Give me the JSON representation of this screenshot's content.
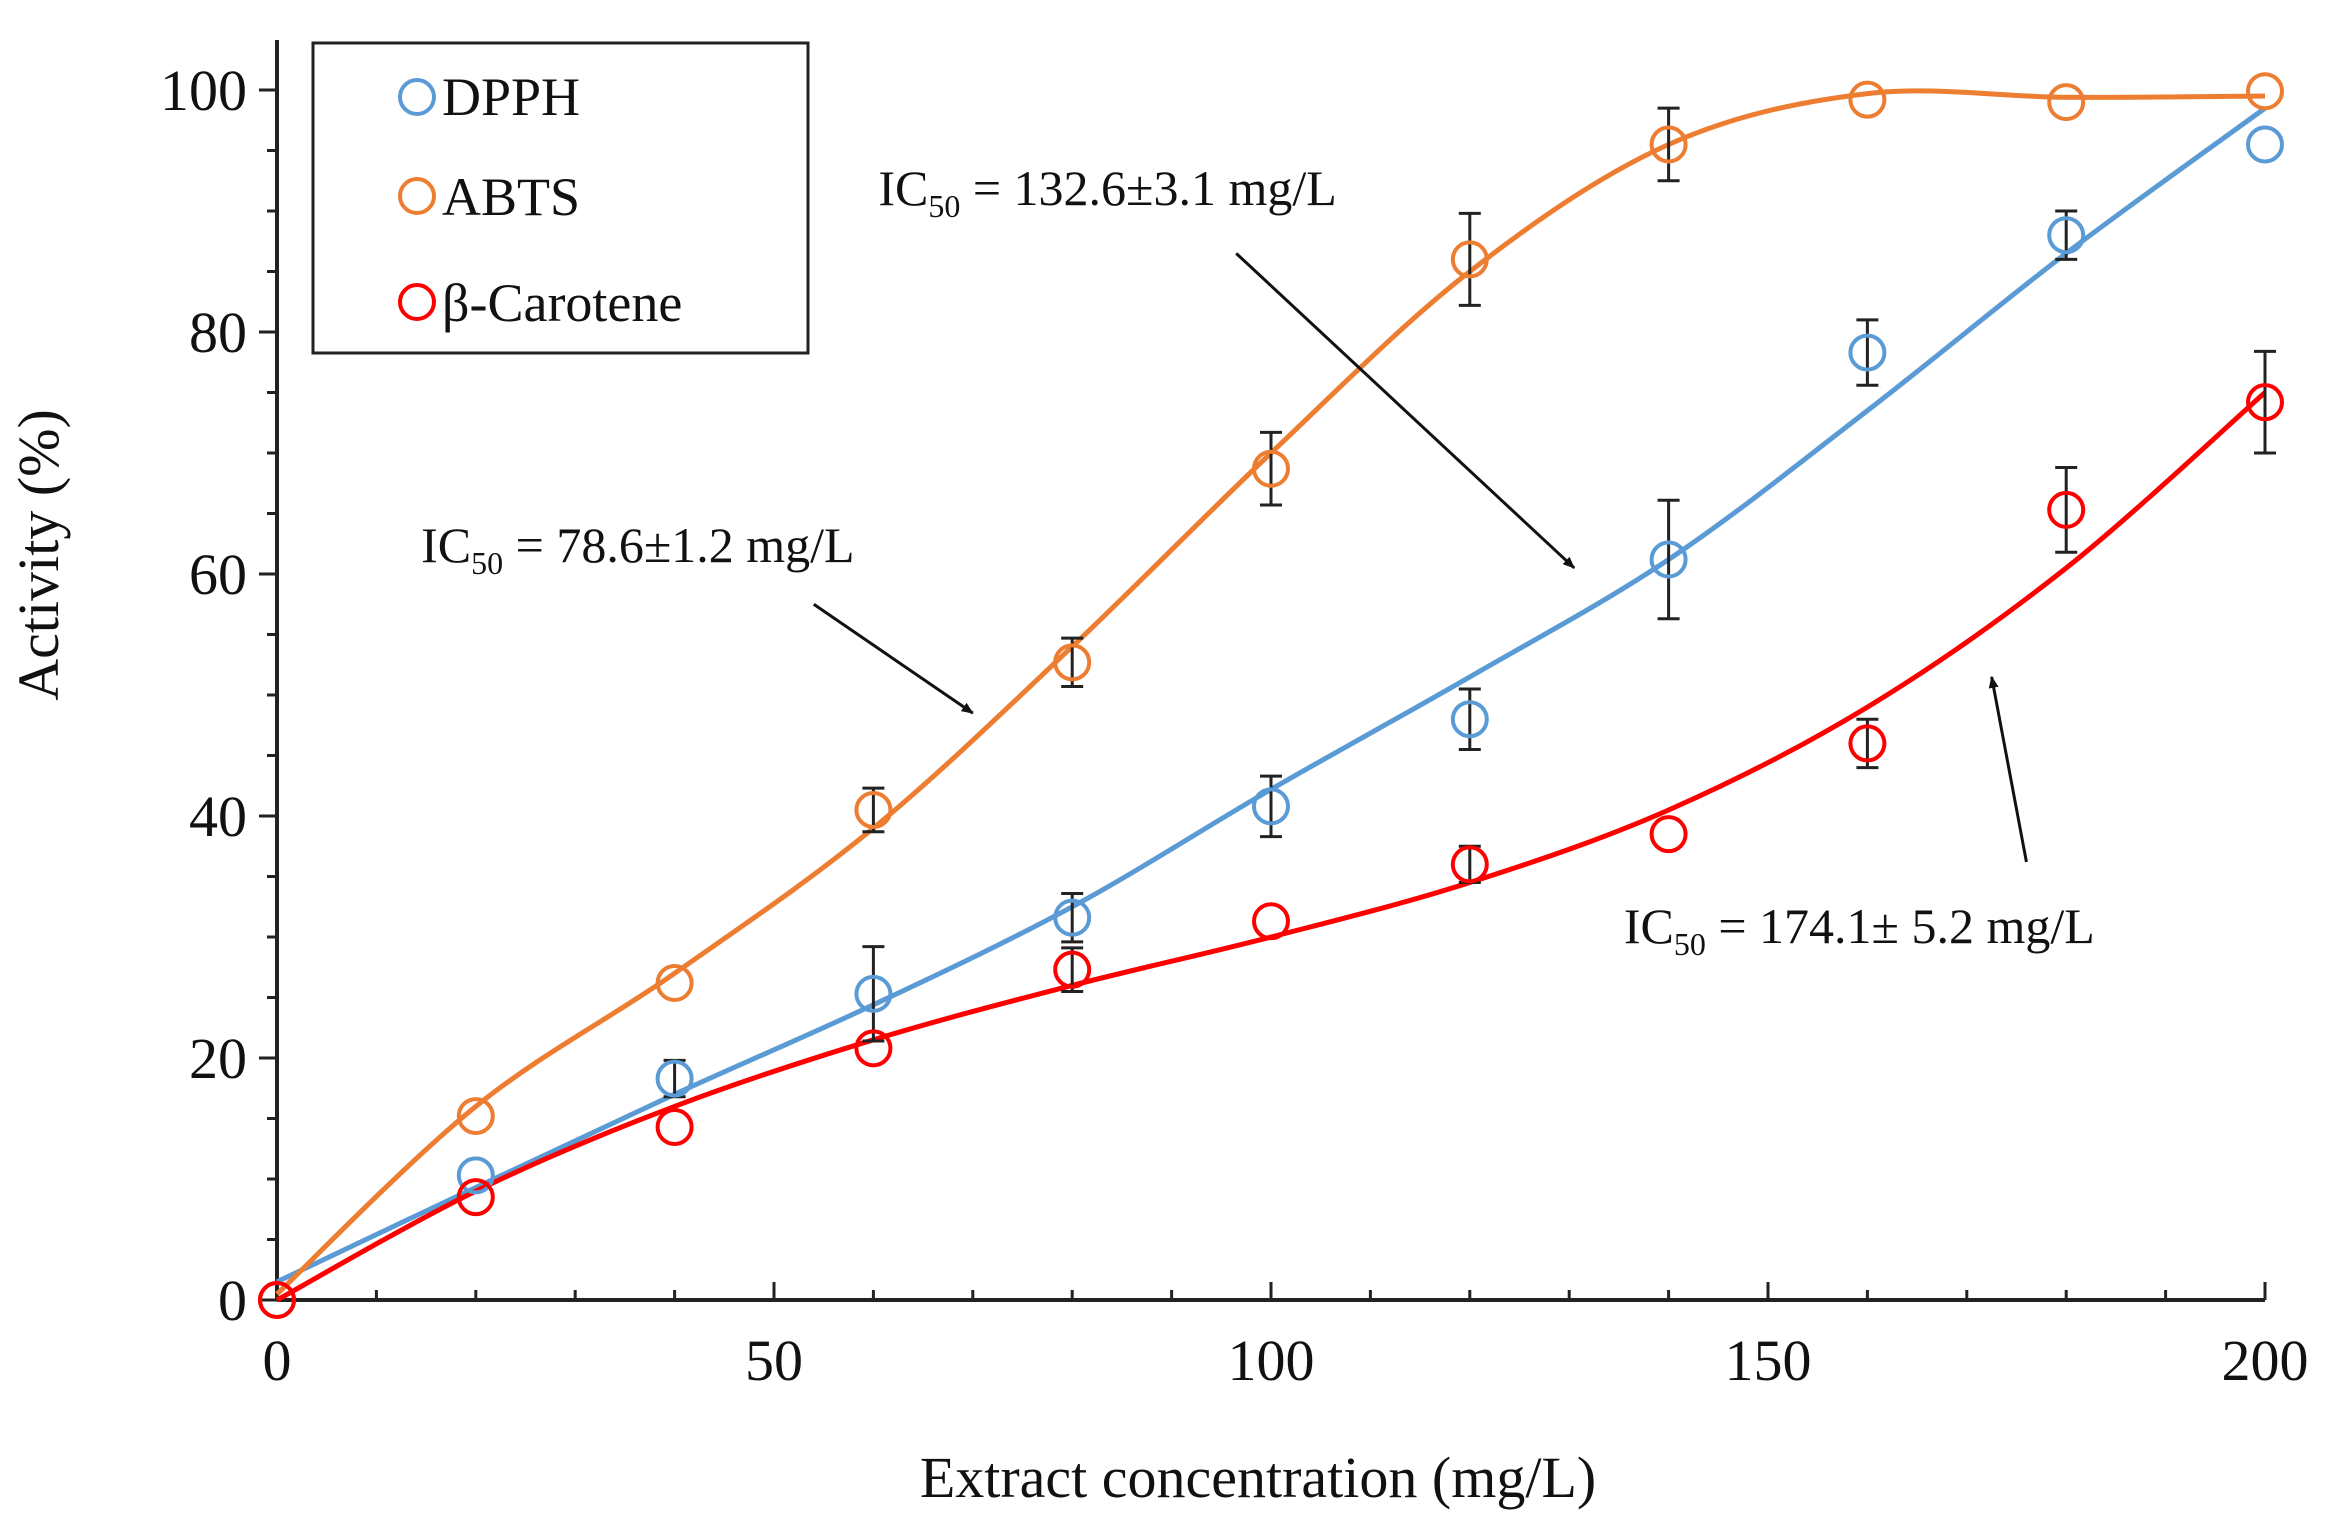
{
  "chart_data": {
    "type": "scatter",
    "xlabel": "Extract concentration (mg/L)",
    "ylabel": "Activity (%)",
    "xlim": [
      0,
      200
    ],
    "ylim": [
      0,
      100
    ],
    "x_ticks": [
      0,
      50,
      100,
      150,
      200
    ],
    "y_ticks": [
      0,
      20,
      40,
      60,
      80,
      100
    ],
    "grid": false,
    "legend_position": "top-left",
    "series": [
      {
        "name": "DPPH",
        "color": "#5b9bd5",
        "x": [
          0,
          20,
          40,
          60,
          80,
          100,
          120,
          140,
          160,
          180,
          200
        ],
        "y": [
          0,
          10.3,
          18.3,
          25.3,
          31.6,
          40.8,
          48.0,
          61.2,
          78.3,
          88.0,
          95.5
        ],
        "error": [
          0,
          0,
          1.5,
          3.9,
          2.0,
          2.5,
          2.5,
          4.9,
          2.7,
          2.0,
          0
        ],
        "fit_x": [
          0,
          20,
          40,
          60,
          80,
          100,
          120,
          140,
          160,
          180,
          200
        ],
        "fit_y": [
          1.5,
          9.3,
          17.0,
          24.4,
          32.5,
          42.2,
          51.5,
          61.2,
          73.5,
          86.5,
          98.5
        ]
      },
      {
        "name": "ABTS",
        "color": "#ed7d31",
        "x": [
          0,
          20,
          40,
          60,
          80,
          100,
          120,
          140,
          160,
          180,
          200
        ],
        "y": [
          0,
          15.2,
          26.2,
          40.5,
          52.7,
          68.7,
          86.0,
          95.5,
          99.2,
          99.0,
          99.9
        ],
        "error": [
          0,
          0,
          0,
          1.8,
          2.0,
          3.0,
          3.8,
          3.0,
          0,
          0,
          0
        ],
        "fit_x": [
          0,
          20,
          40,
          60,
          80,
          100,
          120,
          140,
          160,
          180,
          200
        ],
        "fit_y": [
          0.5,
          16.0,
          27.0,
          39.0,
          54.0,
          70.0,
          85.0,
          95.5,
          99.7,
          99.4,
          99.5
        ]
      },
      {
        "name": "β-Carotene",
        "color": "#ff0000",
        "x": [
          0,
          20,
          40,
          60,
          80,
          100,
          120,
          140,
          160,
          180,
          200
        ],
        "y": [
          0,
          8.5,
          14.3,
          20.8,
          27.3,
          31.3,
          36.0,
          38.5,
          46.0,
          65.3,
          74.2
        ],
        "error": [
          0,
          0,
          0,
          0,
          1.8,
          0,
          1.5,
          0,
          2.0,
          3.5,
          4.2
        ],
        "fit_x": [
          0,
          20,
          40,
          60,
          80,
          100,
          120,
          140,
          160,
          180,
          200
        ],
        "fit_y": [
          0,
          9.0,
          16.0,
          21.5,
          26.0,
          30.0,
          34.5,
          40.5,
          49.0,
          60.5,
          75.0
        ]
      }
    ],
    "annotations": [
      {
        "main": "IC",
        "sub": "50",
        "rest": " = 78.6±1.2 mg/L",
        "series": "ABTS",
        "text_anchor_data": [
          14.5,
          61.0
        ],
        "arrow_from_data": [
          54,
          57.5
        ],
        "arrow_to_data": [
          70,
          48.5
        ]
      },
      {
        "main": "IC",
        "sub": "50",
        "rest": " = 132.6±3.1 mg/L",
        "series": "DPPH",
        "text_anchor_data": [
          60.5,
          90.5
        ],
        "arrow_from_data": [
          96.5,
          86.5
        ],
        "arrow_to_data": [
          130.5,
          60.5
        ]
      },
      {
        "main": "IC",
        "sub": "50",
        "rest": " = 174.1± 5.2 mg/L",
        "series": "β-Carotene",
        "text_anchor_data": [
          135.5,
          29.5
        ],
        "arrow_from_data": [
          176,
          36.2
        ],
        "arrow_to_data": [
          172.5,
          51.5
        ]
      }
    ]
  }
}
